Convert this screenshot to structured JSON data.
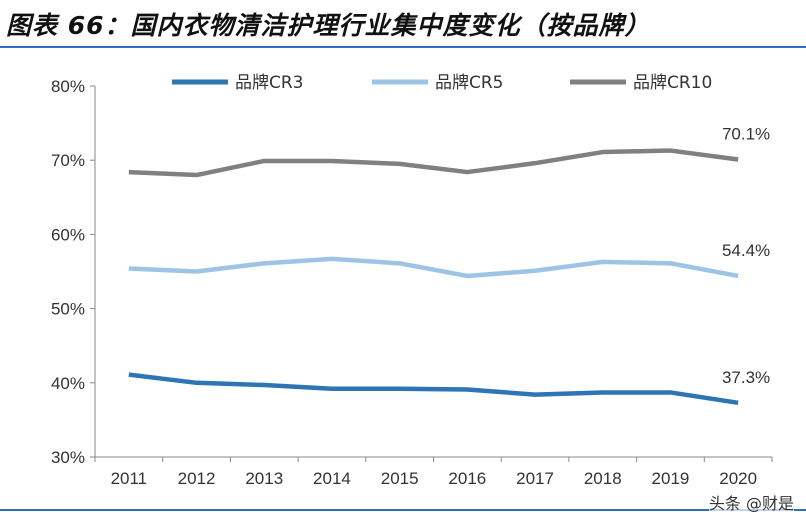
{
  "title": "图表 66：国内衣物清洁护理行业集中度变化（按品牌）",
  "watermark": "头条 @财是",
  "chart_data": {
    "type": "line",
    "categories": [
      "2011",
      "2012",
      "2013",
      "2014",
      "2015",
      "2016",
      "2017",
      "2018",
      "2019",
      "2020"
    ],
    "ylim": [
      30,
      80
    ],
    "yticks": [
      "30%",
      "40%",
      "50%",
      "60%",
      "70%",
      "80%"
    ],
    "grid": false,
    "legend": "top",
    "series": [
      {
        "name": "品牌CR3",
        "color": "#2e75b6",
        "values": [
          41.1,
          40.0,
          39.7,
          39.2,
          39.2,
          39.1,
          38.4,
          38.7,
          38.7,
          37.3
        ],
        "end_label": "37.3%"
      },
      {
        "name": "品牌CR5",
        "color": "#9dc3e6",
        "values": [
          55.4,
          55.0,
          56.1,
          56.7,
          56.1,
          54.4,
          55.1,
          56.3,
          56.1,
          54.4
        ],
        "end_label": "54.4%"
      },
      {
        "name": "品牌CR10",
        "color": "#808080",
        "values": [
          68.4,
          68.0,
          69.9,
          69.9,
          69.5,
          68.4,
          69.6,
          71.1,
          71.3,
          70.1
        ],
        "end_label": "70.1%"
      }
    ]
  }
}
